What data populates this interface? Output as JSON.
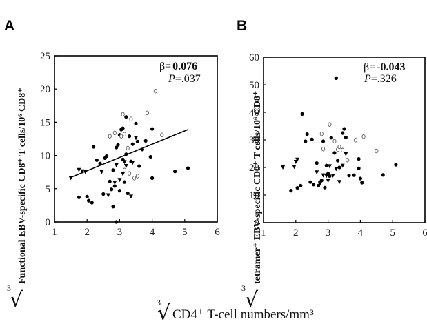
{
  "figure": {
    "xlabel": "CD4⁺ T-cell numbers/mm³",
    "root_index": "3"
  },
  "chart_data": [
    {
      "type": "scatter",
      "panel": "A",
      "ylabel": "Functional EBV-specific CD8⁺ T cells/10⁶ CD8⁺",
      "xlim": [
        1,
        6
      ],
      "ylim": [
        0,
        25
      ],
      "xticks": [
        "1",
        "2",
        "3",
        "4",
        "5",
        "6"
      ],
      "yticks": [
        "0",
        "5",
        "10",
        "15",
        "20",
        "25"
      ],
      "beta_prefix": "β=",
      "beta": "0.076",
      "p_prefix": "P",
      "p": "=.037",
      "regression": {
        "x1": 1.5,
        "y1": 6.7,
        "x2": 5.1,
        "y2": 13.9
      },
      "series": [
        {
          "marker": "filled-circle",
          "points": [
            [
              1.75,
              3.7
            ],
            [
              2.0,
              3.8
            ],
            [
              2.05,
              3.2
            ],
            [
              2.15,
              2.9
            ],
            [
              2.2,
              11.3
            ],
            [
              2.3,
              9.3
            ],
            [
              2.4,
              8.8
            ],
            [
              2.5,
              4.2
            ],
            [
              2.55,
              9.6
            ],
            [
              2.6,
              9.9
            ],
            [
              2.7,
              6.1
            ],
            [
              2.75,
              4.9
            ],
            [
              2.8,
              7.8
            ],
            [
              2.8,
              2.3
            ],
            [
              2.85,
              5.4
            ],
            [
              2.9,
              11.2
            ],
            [
              2.95,
              11.6
            ],
            [
              3.0,
              13.1
            ],
            [
              3.05,
              13.9
            ],
            [
              3.1,
              9.4
            ],
            [
              3.1,
              14.1
            ],
            [
              3.15,
              6.0
            ],
            [
              3.2,
              15.8
            ],
            [
              3.2,
              10.2
            ],
            [
              3.3,
              12.9
            ],
            [
              3.35,
              9.1
            ],
            [
              3.4,
              11.7
            ],
            [
              3.5,
              14.8
            ],
            [
              3.55,
              12.1
            ],
            [
              3.6,
              8.4
            ],
            [
              3.7,
              10.9
            ],
            [
              3.8,
              12.2
            ],
            [
              3.95,
              9.8
            ],
            [
              4.0,
              6.6
            ],
            [
              4.0,
              14.0
            ],
            [
              4.7,
              7.6
            ],
            [
              5.1,
              8.1
            ],
            [
              3.25,
              4.3
            ],
            [
              2.9,
              0.0
            ],
            [
              3.0,
              4.7
            ]
          ]
        },
        {
          "marker": "open-circle",
          "points": [
            [
              2.7,
              12.9
            ],
            [
              2.85,
              13.4
            ],
            [
              3.05,
              12.9
            ],
            [
              3.15,
              13.2
            ],
            [
              3.1,
              16.2
            ],
            [
              3.25,
              11.1
            ],
            [
              3.3,
              7.3
            ],
            [
              3.45,
              6.6
            ],
            [
              3.55,
              6.9
            ],
            [
              3.85,
              16.4
            ],
            [
              4.1,
              19.7
            ],
            [
              4.3,
              13.1
            ],
            [
              3.35,
              15.5
            ],
            [
              3.15,
              7.8
            ]
          ]
        },
        {
          "marker": "filled-triangle",
          "points": [
            [
              1.5,
              6.6
            ],
            [
              1.75,
              7.8
            ],
            [
              1.85,
              7.6
            ],
            [
              1.95,
              7.5
            ],
            [
              2.45,
              7.5
            ],
            [
              2.65,
              4.0
            ],
            [
              2.85,
              5.9
            ],
            [
              2.9,
              8.5
            ],
            [
              3.0,
              6.3
            ],
            [
              3.1,
              7.2
            ],
            [
              3.15,
              9.0
            ],
            [
              3.2,
              8.4
            ],
            [
              3.35,
              3.8
            ],
            [
              3.4,
              8.9
            ],
            [
              3.5,
              12.6
            ]
          ]
        }
      ]
    },
    {
      "type": "scatter",
      "panel": "B",
      "ylabel": "tetramer⁺ EBV-specific CD8⁺ T cells/10⁶ CD8⁺",
      "xlim": [
        1,
        6
      ],
      "ylim": [
        0,
        60
      ],
      "xticks": [
        "1",
        "2",
        "3",
        "4",
        "5",
        "6"
      ],
      "yticks": [
        "0",
        "10",
        "20",
        "30",
        "40",
        "50",
        "60"
      ],
      "beta_prefix": "β=",
      "beta": "-0.043",
      "p_prefix": "P",
      "p": "=.326",
      "series": [
        {
          "marker": "filled-circle",
          "points": [
            [
              1.85,
              11.6
            ],
            [
              2.05,
              12.6
            ],
            [
              2.15,
              13.4
            ],
            [
              2.2,
              39.4
            ],
            [
              2.3,
              29.5
            ],
            [
              2.35,
              32.1
            ],
            [
              2.45,
              14.7
            ],
            [
              2.5,
              30.2
            ],
            [
              2.55,
              13.8
            ],
            [
              2.65,
              21.6
            ],
            [
              2.7,
              13.4
            ],
            [
              2.75,
              14.5
            ],
            [
              2.8,
              15.3
            ],
            [
              2.85,
              29.5
            ],
            [
              2.9,
              12.7
            ],
            [
              2.95,
              20.7
            ],
            [
              3.0,
              17.8
            ],
            [
              3.05,
              16.9
            ],
            [
              3.1,
              30.8
            ],
            [
              3.2,
              25.3
            ],
            [
              3.25,
              52.4
            ],
            [
              3.3,
              22.5
            ],
            [
              3.35,
              20.0
            ],
            [
              3.45,
              32.5
            ],
            [
              3.5,
              34.0
            ],
            [
              3.55,
              30.9
            ],
            [
              3.65,
              17.1
            ],
            [
              3.8,
              17.2
            ],
            [
              3.95,
              19.7
            ],
            [
              3.95,
              23.1
            ],
            [
              4.0,
              16.0
            ],
            [
              4.05,
              14.5
            ],
            [
              4.7,
              17.3
            ],
            [
              5.1,
              21.0
            ]
          ]
        },
        {
          "marker": "open-circle",
          "points": [
            [
              3.05,
              35.6
            ],
            [
              3.2,
              29.5
            ],
            [
              3.3,
              26.5
            ],
            [
              3.45,
              26.3
            ],
            [
              3.6,
              22.7
            ],
            [
              3.85,
              29.9
            ],
            [
              4.1,
              31.2
            ],
            [
              4.5,
              26.0
            ],
            [
              2.85,
              26.7
            ],
            [
              3.35,
              27.5
            ],
            [
              2.8,
              32.2
            ]
          ]
        },
        {
          "marker": "filled-triangle",
          "points": [
            [
              1.6,
              20.0
            ],
            [
              1.95,
              20.2
            ],
            [
              2.0,
              22.0
            ],
            [
              2.05,
              22.8
            ],
            [
              2.65,
              18.2
            ],
            [
              2.85,
              17.1
            ],
            [
              2.95,
              16.9
            ],
            [
              3.0,
              15.2
            ],
            [
              3.05,
              20.4
            ],
            [
              3.15,
              17.0
            ],
            [
              3.25,
              19.4
            ],
            [
              3.35,
              14.7
            ],
            [
              3.45,
              20.6
            ],
            [
              3.55,
              24.8
            ],
            [
              2.75,
              14.2
            ]
          ]
        }
      ]
    }
  ]
}
